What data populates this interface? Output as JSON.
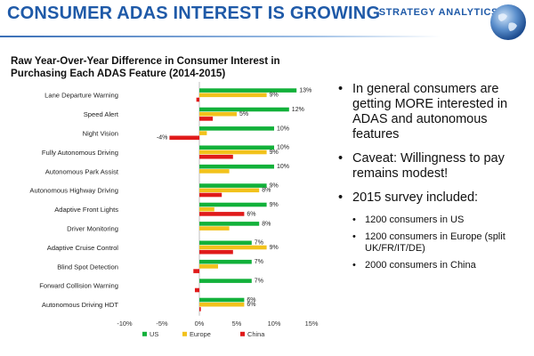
{
  "slide": {
    "title": "CONSUMER ADAS INTEREST IS GROWING",
    "brand": "STRATEGY ANALYTICS"
  },
  "bullets": [
    {
      "text": "In general consumers are getting MORE interested in ADAS and autonomous features"
    },
    {
      "text": "Caveat: Willingness to pay remains modest!"
    },
    {
      "text": "2015 survey included:"
    }
  ],
  "sub_bullets": [
    {
      "text": "1200 consumers in US"
    },
    {
      "text": "1200 consumers in Europe (split UK/FR/IT/DE)"
    },
    {
      "text": "2000 consumers in China"
    }
  ],
  "colors": {
    "title": "#1f5aa8",
    "us": "#12b13a",
    "europe": "#f2c21b",
    "china": "#e01a1a"
  },
  "chart_data": {
    "type": "bar",
    "orientation": "horizontal",
    "title": "Raw Year-Over-Year Difference in Consumer Interest in Purchasing Each ADAS Feature (2014-2015)",
    "categories": [
      "Lane Departure Warning",
      "Speed Alert",
      "Night Vision",
      "Fully Autonomous Driving",
      "Autonomous Park Assist",
      "Autonomous Highway Driving",
      "Adaptive Front Lights",
      "Driver Monitoring",
      "Adaptive Cruise Control",
      "Blind Spot Detection",
      "Forward Collision Warning",
      "Autonomous Driving HDT"
    ],
    "series": [
      {
        "name": "US",
        "color": "#12b13a",
        "values": [
          13,
          12,
          10,
          10,
          10,
          9,
          9,
          8,
          7,
          7,
          7,
          6
        ]
      },
      {
        "name": "Europe",
        "color": "#f2c21b",
        "values": [
          9,
          5,
          1,
          9,
          4,
          8,
          2,
          4,
          9,
          2.5,
          0,
          6
        ]
      },
      {
        "name": "China",
        "color": "#e01a1a",
        "values": [
          -0.4,
          1.8,
          -4,
          4.5,
          0,
          3,
          6,
          0,
          4.5,
          -0.8,
          -0.6,
          0.2
        ]
      }
    ],
    "data_labels": [
      {
        "category": 0,
        "series": "US",
        "text": "13%"
      },
      {
        "category": 0,
        "series": "Europe",
        "text": "9%"
      },
      {
        "category": 1,
        "series": "US",
        "text": "12%"
      },
      {
        "category": 1,
        "series": "Europe",
        "text": "5%"
      },
      {
        "category": 2,
        "series": "US",
        "text": "10%"
      },
      {
        "category": 2,
        "series": "China",
        "text": "-4%"
      },
      {
        "category": 3,
        "series": "US",
        "text": "10%"
      },
      {
        "category": 3,
        "series": "Europe",
        "text": "9%"
      },
      {
        "category": 4,
        "series": "US",
        "text": "10%"
      },
      {
        "category": 5,
        "series": "US",
        "text": "9%"
      },
      {
        "category": 5,
        "series": "Europe",
        "text": "8%"
      },
      {
        "category": 6,
        "series": "US",
        "text": "9%"
      },
      {
        "category": 6,
        "series": "China",
        "text": "6%"
      },
      {
        "category": 7,
        "series": "US",
        "text": "8%"
      },
      {
        "category": 8,
        "series": "US",
        "text": "7%"
      },
      {
        "category": 8,
        "series": "Europe",
        "text": "9%"
      },
      {
        "category": 9,
        "series": "US",
        "text": "7%"
      },
      {
        "category": 10,
        "series": "US",
        "text": "7%"
      },
      {
        "category": 11,
        "series": "US",
        "text": "6%"
      },
      {
        "category": 11,
        "series": "Europe",
        "text": "6%"
      }
    ],
    "xlim": [
      -10,
      15
    ],
    "xticks": [
      "-10%",
      "-5%",
      "0%",
      "5%",
      "10%",
      "15%"
    ],
    "legend": [
      "US",
      "Europe",
      "China"
    ],
    "legend_position": "bottom"
  }
}
